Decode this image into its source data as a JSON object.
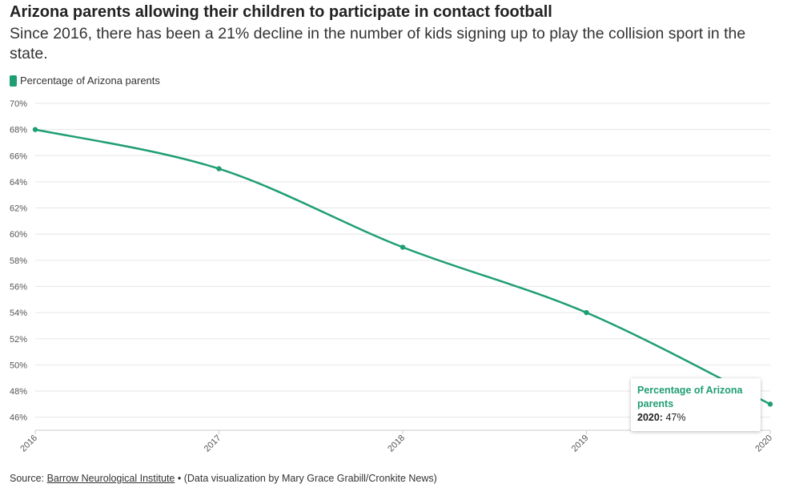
{
  "colors": {
    "series": "#1f9e73",
    "grid": "#e6e6e6",
    "axis": "#cccccc"
  },
  "legend": {
    "label": "Percentage of Arizona parents"
  },
  "tooltip": {
    "series": "Percentage of Arizona parents",
    "year": "2020:",
    "value": "47%"
  },
  "source": {
    "prefix": "Source:",
    "link": "Barrow Neurological Institute",
    "bullet": "•",
    "credit": "(Data visualization by Mary Grace Grabill/Cronkite News)"
  },
  "chart_data": {
    "type": "line",
    "title": "Arizona parents allowing their children to participate in contact football",
    "subtitle": "Since 2016, there has been a 21% decline in the number of kids signing up to play the collision sport in the state.",
    "x": [
      "2016",
      "2017",
      "2018",
      "2019",
      "2020"
    ],
    "series": [
      {
        "name": "Percentage of Arizona parents",
        "values": [
          68,
          65,
          59,
          54,
          47
        ]
      }
    ],
    "ylim": [
      45,
      70
    ],
    "yticks": [
      70,
      68,
      66,
      64,
      62,
      60,
      58,
      56,
      54,
      52,
      50,
      48,
      46
    ],
    "ytick_suffix": "%",
    "xlabel": "",
    "ylabel": "",
    "grid": true,
    "legend_position": "top-left"
  }
}
